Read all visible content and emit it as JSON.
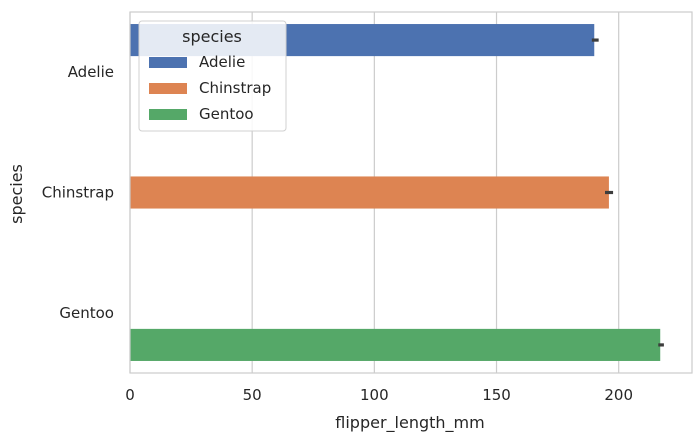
{
  "chart_data": {
    "type": "bar",
    "orientation": "horizontal",
    "categories": [
      "Adelie",
      "Chinstrap",
      "Gentoo"
    ],
    "series": [
      {
        "name": "Adelie",
        "color": "#4c72b0",
        "values": [
          190,
          null,
          null
        ],
        "ci": [
          [
            189,
            191.8
          ],
          null,
          null
        ]
      },
      {
        "name": "Chinstrap",
        "color": "#dd8452",
        "values": [
          null,
          196,
          null
        ],
        "ci": [
          null,
          [
            194.4,
            197.7
          ],
          null
        ]
      },
      {
        "name": "Gentoo",
        "color": "#55a868",
        "values": [
          null,
          null,
          217
        ],
        "ci": [
          null,
          null,
          [
            216.2,
            218.5
          ]
        ]
      }
    ],
    "xlabel": "flipper_length_mm",
    "ylabel": "species",
    "xlim": [
      0,
      230
    ],
    "xticks": [
      0,
      50,
      100,
      150,
      200
    ],
    "grid": true,
    "legend": {
      "title": "species",
      "placement": "upper-left",
      "entries": [
        "Adelie",
        "Chinstrap",
        "Gentoo"
      ]
    },
    "colors": {
      "grid": "#cccccc",
      "axis_frame": "#cccccc",
      "error_bar": "#3d3d3d"
    }
  }
}
